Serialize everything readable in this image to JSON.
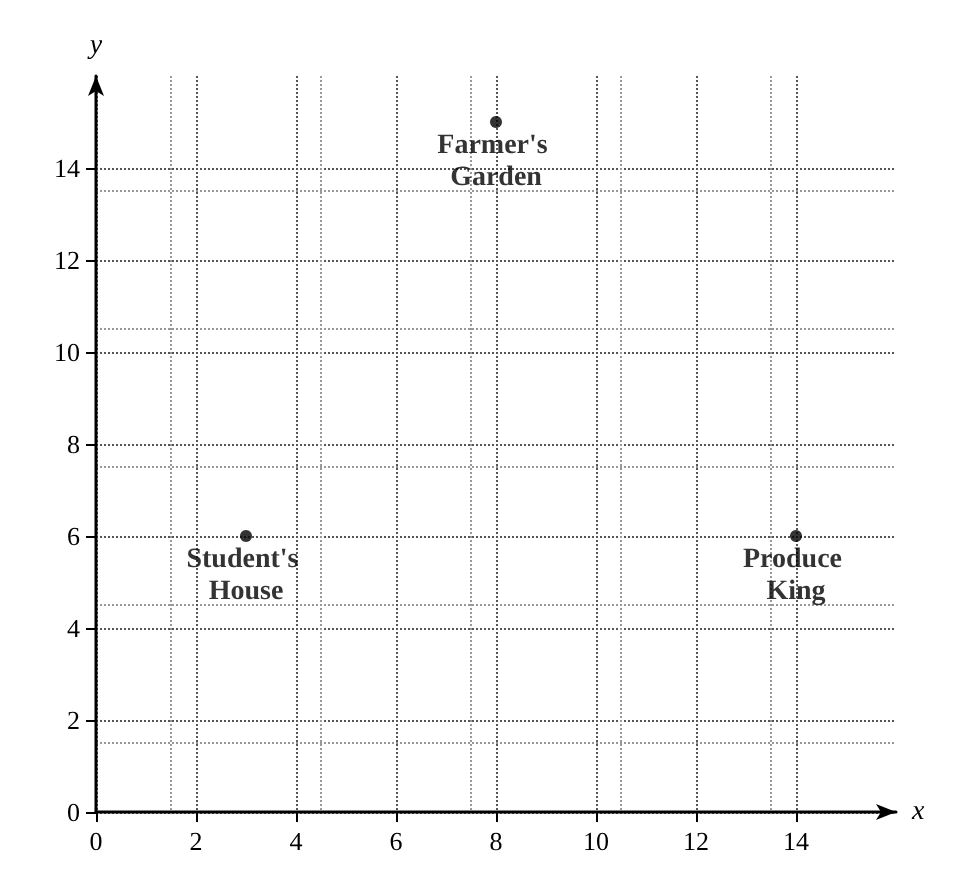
{
  "chart_data": {
    "type": "scatter",
    "xlabel": "x",
    "ylabel": "y",
    "x": [
      8,
      3,
      14
    ],
    "values": [
      15,
      6,
      6
    ],
    "color": "#000000",
    "marker": "circle",
    "xlim": [
      0,
      16
    ],
    "ylim": [
      0,
      16
    ],
    "xticks": [
      0,
      2,
      4,
      6,
      8,
      10,
      12,
      14
    ],
    "yticks": [
      0,
      2,
      4,
      6,
      8,
      10,
      12,
      14
    ],
    "grid": true,
    "annotations": [
      {
        "text": "Farmer's Garden",
        "x": 8,
        "y": 15
      },
      {
        "text": "Student's House",
        "x": 3,
        "y": 6
      },
      {
        "text": "Produce King",
        "x": 14,
        "y": 6
      }
    ]
  }
}
